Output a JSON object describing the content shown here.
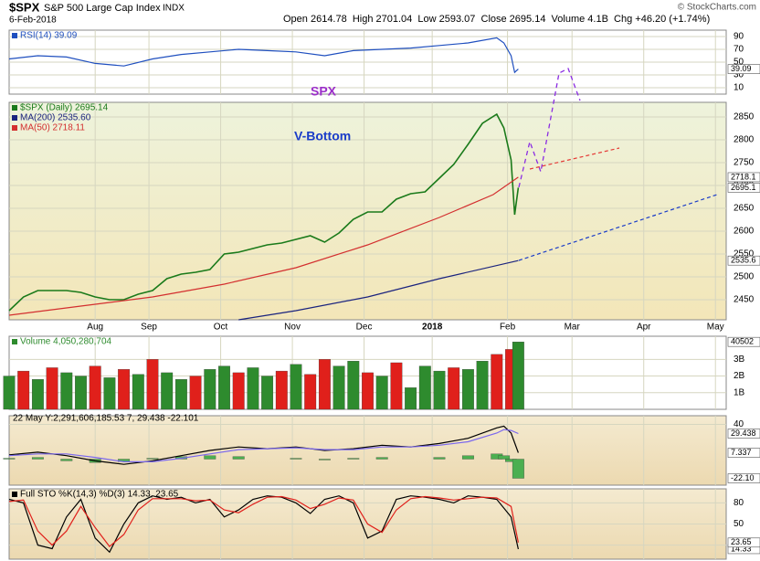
{
  "header": {
    "symbol": "$SPX",
    "name": "S&P 500 Large Cap Index",
    "exchange": "INDX",
    "date": "6-Feb-2018",
    "quote": "Open 2614.78  High 2701.04  Low 2593.07  Close 2695.14  Volume 4.1B  Chg +46.20 (+1.74%)",
    "credit": "© StockCharts.com"
  },
  "chart_data": [
    {
      "type": "line",
      "ylim": [
        0,
        100
      ],
      "yticks": [
        90,
        70,
        50,
        30,
        10
      ],
      "xlim": [
        0,
        200
      ],
      "series": [
        {
          "name": "RSI(14) 39.09",
          "color": "#1f4fbf",
          "tag": "39.09",
          "x": [
            0,
            8,
            16,
            24,
            32,
            40,
            48,
            56,
            64,
            72,
            80,
            88,
            96,
            104,
            112,
            120,
            128,
            136,
            138,
            140,
            141,
            142
          ],
          "values": [
            55,
            60,
            58,
            48,
            44,
            55,
            62,
            66,
            70,
            68,
            66,
            60,
            68,
            70,
            72,
            76,
            80,
            88,
            80,
            60,
            34,
            39.09
          ]
        }
      ]
    },
    {
      "type": "line",
      "ylim": [
        2406,
        2882
      ],
      "yticks": [
        2850,
        2800,
        2750,
        2700,
        2650,
        2600,
        2550,
        2500,
        2450
      ],
      "xlim": [
        0,
        200
      ],
      "xticks": [
        {
          "value": 24,
          "label": "Aug"
        },
        {
          "value": 39,
          "label": "Sep"
        },
        {
          "value": 59,
          "label": "Oct"
        },
        {
          "value": 79,
          "label": "Nov"
        },
        {
          "value": 99,
          "label": "Dec"
        },
        {
          "value": 118,
          "label": "2018"
        },
        {
          "value": 139,
          "label": "Feb"
        },
        {
          "value": 157,
          "label": "Mar"
        },
        {
          "value": 177,
          "label": "Apr"
        },
        {
          "value": 197,
          "label": "May"
        }
      ],
      "annotations": [
        "SPX",
        "V-Bottom"
      ],
      "series": [
        {
          "name": "$SPX (Daily) 2695.14",
          "color": "#1a7a1a",
          "tag": "2695.1",
          "x": [
            0,
            4,
            8,
            12,
            16,
            20,
            24,
            28,
            32,
            36,
            40,
            44,
            48,
            52,
            56,
            60,
            64,
            68,
            72,
            76,
            80,
            84,
            88,
            92,
            96,
            100,
            104,
            108,
            112,
            116,
            120,
            124,
            128,
            132,
            136,
            138,
            140,
            141,
            142
          ],
          "values": [
            2426,
            2456,
            2470,
            2470,
            2470,
            2466,
            2456,
            2450,
            2450,
            2462,
            2470,
            2496,
            2506,
            2510,
            2516,
            2550,
            2554,
            2562,
            2570,
            2574,
            2582,
            2590,
            2576,
            2596,
            2626,
            2642,
            2642,
            2670,
            2682,
            2686,
            2716,
            2746,
            2790,
            2836,
            2856,
            2826,
            2756,
            2636,
            2695.14
          ]
        },
        {
          "name": "MA(200) 2535.60",
          "color": "#1a237e",
          "tag": "2535.6",
          "x": [
            64,
            80,
            100,
            120,
            142
          ],
          "values": [
            2406,
            2426,
            2456,
            2496,
            2535.6
          ]
        },
        {
          "name": "MA(50) 2718.11",
          "color": "#d32f2f",
          "tag": "2718.1",
          "x": [
            0,
            20,
            40,
            60,
            80,
            100,
            120,
            135,
            142
          ],
          "values": [
            2416,
            2436,
            2456,
            2484,
            2520,
            2570,
            2630,
            2680,
            2718.11
          ]
        }
      ]
    },
    {
      "type": "bar",
      "ylim": [
        0,
        4390000000
      ],
      "xlim": [
        0,
        200
      ],
      "yticks": [
        {
          "value": 3000000000,
          "label": "3B"
        },
        {
          "value": 2000000000,
          "label": "2B"
        },
        {
          "value": 1000000000,
          "label": "1B"
        }
      ],
      "series": [
        {
          "name": "Volume 4,050,280,704",
          "color": "#2e8b2e",
          "tag": "40502",
          "x": [
            0,
            4,
            8,
            12,
            16,
            20,
            24,
            28,
            32,
            36,
            40,
            44,
            48,
            52,
            56,
            60,
            64,
            68,
            72,
            76,
            80,
            84,
            88,
            92,
            96,
            100,
            104,
            108,
            112,
            116,
            120,
            124,
            128,
            132,
            136,
            140,
            142
          ],
          "values": [
            2000000000,
            2300000000,
            1800000000,
            2500000000,
            2200000000,
            2000000000,
            2600000000,
            1900000000,
            2400000000,
            2100000000,
            3000000000,
            2200000000,
            1800000000,
            2000000000,
            2400000000,
            2600000000,
            2200000000,
            2500000000,
            2000000000,
            2300000000,
            2700000000,
            2100000000,
            3000000000,
            2600000000,
            2900000000,
            2200000000,
            2000000000,
            2800000000,
            1300000000,
            2600000000,
            2300000000,
            2500000000,
            2400000000,
            2900000000,
            3300000000,
            3600000000,
            4050280704
          ],
          "colors": [
            "#2e8b2e",
            "#e0201b",
            "#2e8b2e",
            "#e0201b",
            "#2e8b2e",
            "#2e8b2e",
            "#e0201b",
            "#2e8b2e",
            "#e0201b",
            "#2e8b2e",
            "#e0201b",
            "#2e8b2e",
            "#2e8b2e",
            "#e0201b",
            "#2e8b2e",
            "#2e8b2e",
            "#e0201b",
            "#2e8b2e",
            "#2e8b2e",
            "#e0201b",
            "#2e8b2e",
            "#e0201b",
            "#e0201b",
            "#2e8b2e",
            "#2e8b2e",
            "#e0201b",
            "#2e8b2e",
            "#e0201b",
            "#2e8b2e",
            "#2e8b2e",
            "#2e8b2e",
            "#e0201b",
            "#2e8b2e",
            "#2e8b2e",
            "#e0201b",
            "#e0201b",
            "#2e8b2e"
          ]
        }
      ]
    },
    {
      "type": "line",
      "title": "22 May Y:2,291,606,185.53 7, 29.438 -22.101",
      "ylim": [
        -30,
        50
      ],
      "yticks": [
        40
      ],
      "xlim": [
        0,
        200
      ],
      "series": [
        {
          "type": "bar",
          "color": "#4caf50",
          "tag": "-22.10",
          "x": [
            0,
            8,
            16,
            24,
            32,
            40,
            48,
            56,
            64,
            72,
            80,
            88,
            96,
            104,
            112,
            120,
            128,
            136,
            138,
            140,
            142
          ],
          "values": [
            1,
            2,
            -2,
            -4,
            -3,
            1,
            3,
            4,
            3,
            0,
            1,
            -1,
            1,
            2,
            0,
            2,
            4,
            6,
            4,
            -3,
            -22.101
          ]
        },
        {
          "color": "#000000",
          "tag": "7.337",
          "x": [
            0,
            8,
            16,
            24,
            32,
            40,
            48,
            56,
            64,
            72,
            80,
            88,
            96,
            104,
            112,
            120,
            128,
            136,
            138,
            140,
            142
          ],
          "values": [
            5,
            8,
            4,
            -2,
            -6,
            -2,
            4,
            10,
            14,
            12,
            14,
            10,
            12,
            16,
            14,
            18,
            24,
            36,
            38,
            30,
            7.337
          ]
        },
        {
          "color": "#7b68ee",
          "tag": "29.438",
          "x": [
            0,
            8,
            16,
            24,
            32,
            40,
            48,
            56,
            64,
            72,
            80,
            88,
            96,
            104,
            112,
            120,
            128,
            136,
            138,
            140,
            142
          ],
          "values": [
            4,
            6,
            6,
            2,
            -3,
            -3,
            1,
            6,
            11,
            12,
            13,
            11,
            11,
            14,
            14,
            16,
            20,
            30,
            34,
            33,
            29.438
          ]
        }
      ]
    },
    {
      "type": "line",
      "ylim": [
        0,
        100
      ],
      "yticks": [
        80,
        50,
        20
      ],
      "xlim": [
        0,
        200
      ],
      "series": [
        {
          "name": "Full STO %K(14,3) %D(3) 14.33, 23.65",
          "color": "#000000",
          "tag": "14.33",
          "x": [
            0,
            4,
            8,
            12,
            16,
            20,
            24,
            28,
            32,
            36,
            40,
            44,
            48,
            52,
            56,
            60,
            64,
            68,
            72,
            76,
            80,
            84,
            88,
            92,
            96,
            100,
            104,
            108,
            112,
            116,
            120,
            124,
            128,
            132,
            136,
            140,
            142
          ],
          "values": [
            85,
            80,
            20,
            15,
            60,
            85,
            30,
            10,
            50,
            80,
            90,
            85,
            88,
            80,
            85,
            60,
            70,
            85,
            90,
            88,
            80,
            65,
            85,
            90,
            80,
            30,
            40,
            85,
            90,
            88,
            85,
            80,
            90,
            88,
            85,
            60,
            14.33
          ]
        },
        {
          "color": "#e0201b",
          "tag": "23.65",
          "x": [
            0,
            4,
            8,
            12,
            16,
            20,
            24,
            28,
            32,
            36,
            40,
            44,
            48,
            52,
            56,
            60,
            64,
            68,
            72,
            76,
            80,
            84,
            88,
            92,
            96,
            100,
            104,
            108,
            112,
            116,
            120,
            124,
            128,
            132,
            136,
            140,
            142
          ],
          "values": [
            82,
            84,
            40,
            20,
            40,
            75,
            45,
            18,
            35,
            70,
            86,
            86,
            86,
            83,
            84,
            70,
            66,
            78,
            88,
            89,
            84,
            72,
            78,
            87,
            84,
            50,
            38,
            70,
            86,
            89,
            87,
            84,
            86,
            88,
            87,
            75,
            23.65
          ]
        }
      ]
    }
  ]
}
